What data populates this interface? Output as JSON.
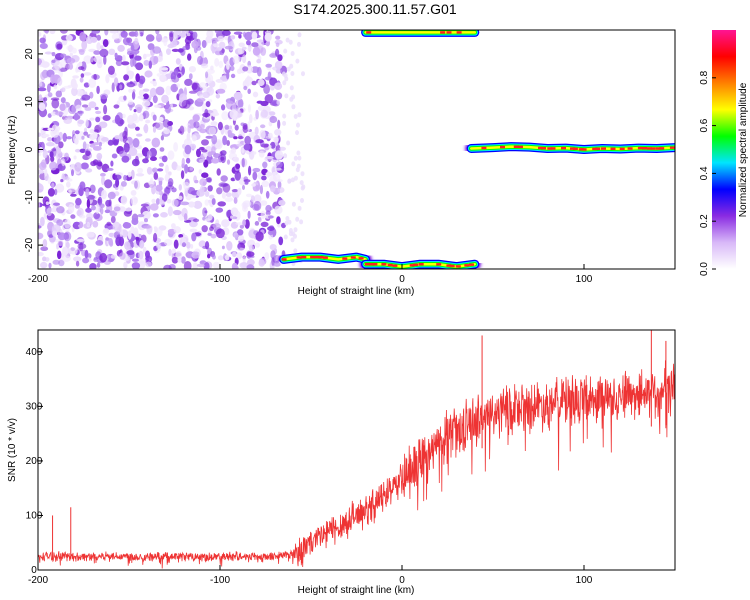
{
  "title": "S174.2025.300.11.57.G01",
  "chart_data": [
    {
      "type": "heatmap",
      "xlabel": "Height of straight line (km)",
      "ylabel": "Frequency (Hz)",
      "xlim": [
        -200,
        150
      ],
      "ylim": [
        -25,
        25
      ],
      "xticks": [
        "-200",
        "-100",
        "0",
        "100"
      ],
      "xtick_values": [
        -200,
        -100,
        0,
        100
      ],
      "yticks": [
        "-20",
        "-10",
        "0",
        "10",
        "20"
      ],
      "ytick_values": [
        -20,
        -10,
        0,
        10,
        20
      ],
      "noise_region": {
        "x_from": -200,
        "x_to": -65
      },
      "signal_tracks": [
        {
          "name": "track-low-1",
          "x": [
            -65,
            -55,
            -45,
            -35,
            -25,
            -20
          ],
          "y": [
            -23,
            -22.5,
            -22.5,
            -23,
            -22.5,
            -23
          ]
        },
        {
          "name": "track-low-2",
          "x": [
            -20,
            -10,
            0,
            10,
            20,
            30,
            40
          ],
          "y": [
            -24,
            -24,
            -24.5,
            -24,
            -24,
            -24.5,
            -24
          ]
        },
        {
          "name": "track-upper",
          "x": [
            -20,
            0,
            20,
            40
          ],
          "y": [
            24.5,
            24.5,
            24.5,
            24.5
          ]
        },
        {
          "name": "track-zero",
          "x": [
            38,
            50,
            60,
            70,
            80,
            90,
            100,
            110,
            120,
            130,
            140,
            150
          ],
          "y": [
            0.2,
            0.4,
            0.6,
            0.5,
            0.2,
            0.3,
            0.0,
            0.2,
            0.1,
            0.3,
            0.2,
            0.4
          ]
        }
      ],
      "colorbar": {
        "label": "Normalized spectral amplitude",
        "range": [
          0.0,
          1.0
        ],
        "ticks": [
          "0.0",
          "0.2",
          "0.4",
          "0.6",
          "0.8"
        ],
        "tick_values": [
          0.0,
          0.2,
          0.4,
          0.6,
          0.8
        ],
        "colors": [
          "#ffffff",
          "#d8b8f8",
          "#8a2be2",
          "#0000ff",
          "#00e5ff",
          "#00ff00",
          "#ffff00",
          "#ff8000",
          "#ff0000",
          "#ff1493"
        ]
      }
    },
    {
      "type": "line",
      "xlabel": "Height of straight line (km)",
      "ylabel": "SNR (10 * v/v)",
      "xlim": [
        -200,
        150
      ],
      "ylim": [
        0,
        440
      ],
      "xticks": [
        "-200",
        "-100",
        "0",
        "100"
      ],
      "xtick_values": [
        -200,
        -100,
        0,
        100
      ],
      "yticks": [
        "0",
        "100",
        "200",
        "300",
        "400"
      ],
      "ytick_values": [
        0,
        100,
        200,
        300,
        400
      ],
      "series": [
        {
          "name": "SNR",
          "color": "#ee3333",
          "x": [
            -200,
            -190,
            -180,
            -170,
            -160,
            -150,
            -140,
            -130,
            -120,
            -110,
            -100,
            -90,
            -80,
            -70,
            -60,
            -55,
            -50,
            -45,
            -40,
            -35,
            -30,
            -25,
            -20,
            -15,
            -10,
            -5,
            0,
            5,
            10,
            15,
            20,
            25,
            30,
            35,
            40,
            45,
            50,
            55,
            60,
            65,
            70,
            75,
            80,
            85,
            90,
            95,
            100,
            105,
            110,
            115,
            120,
            125,
            130,
            135,
            140,
            145,
            150
          ],
          "y": [
            25,
            26,
            24,
            25,
            26,
            25,
            24,
            25,
            25,
            24,
            25,
            26,
            25,
            25,
            30,
            40,
            50,
            60,
            70,
            80,
            90,
            100,
            110,
            120,
            135,
            150,
            165,
            180,
            200,
            215,
            230,
            245,
            255,
            265,
            275,
            280,
            285,
            290,
            295,
            298,
            300,
            303,
            305,
            308,
            310,
            312,
            314,
            316,
            318,
            320,
            322,
            324,
            326,
            328,
            330,
            332,
            335
          ],
          "spikes": [
            {
              "x": -182,
              "y": 115
            },
            {
              "x": -192,
              "y": 100
            },
            {
              "x": 44,
              "y": 430
            },
            {
              "x": 137,
              "y": 440
            },
            {
              "x": 145,
              "y": 420
            }
          ]
        }
      ]
    }
  ]
}
